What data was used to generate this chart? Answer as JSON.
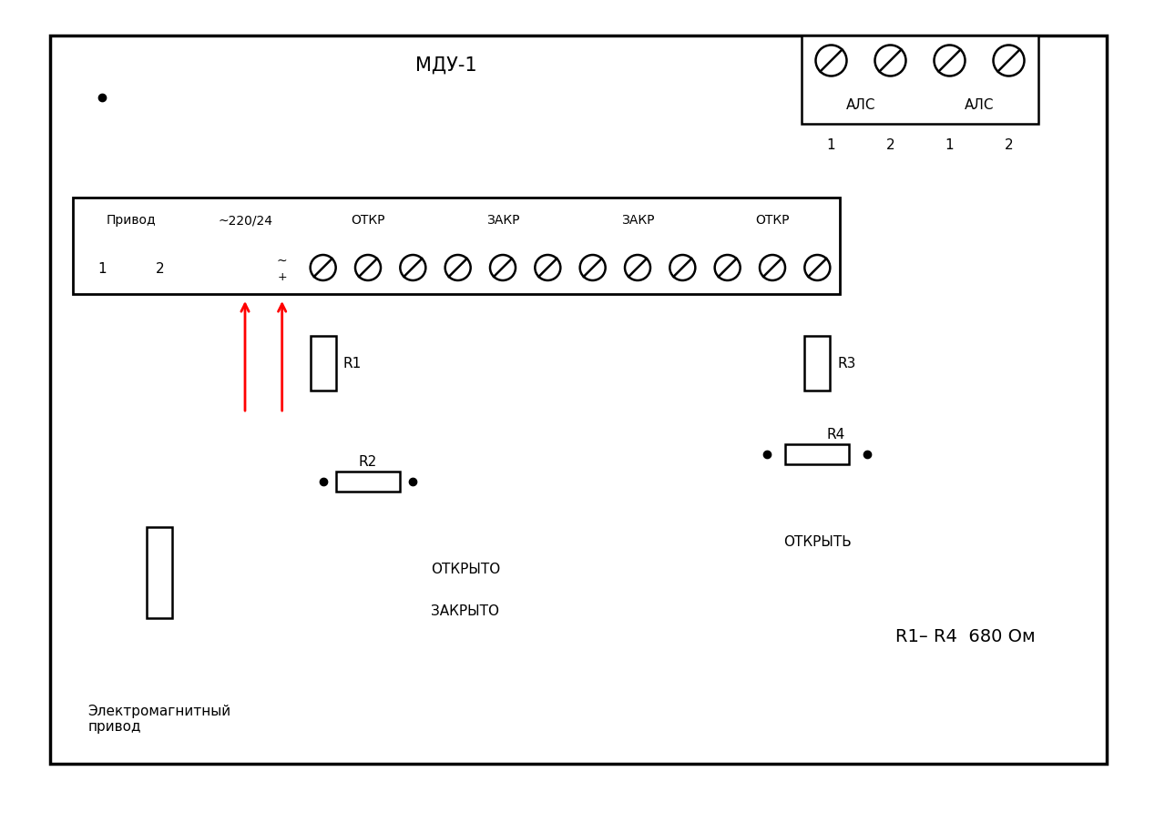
{
  "bg": "#ffffff",
  "title": "МДУ-1",
  "privod": "Привод",
  "v220": "~220/24",
  "otkr": "ОТКР",
  "zakr": "ЗАКР",
  "als": "АЛС",
  "r1": "R1",
  "r2": "R2",
  "r3": "R3",
  "r4": "R4",
  "otkryto": "ОТКРЫТО",
  "zakryto": "ЗАКРЫТО",
  "otkryt": "ОТКРЫТЬ",
  "elektro": "Электромагнитный\nпривод",
  "r1r4_label": "R1– R4  680 Ом",
  "fig_w": 12.79,
  "fig_h": 9.04,
  "dpi": 100
}
